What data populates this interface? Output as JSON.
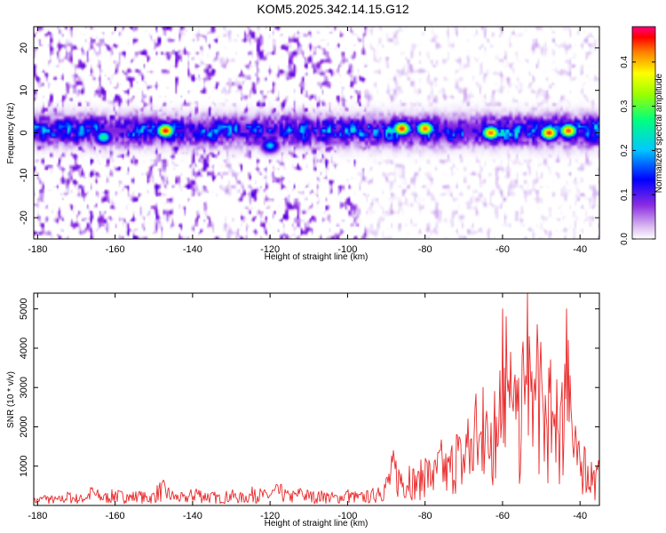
{
  "title": "KOM5.2025.342.14.15.G12",
  "chart_data": [
    {
      "type": "heatmap",
      "name": "spectrogram",
      "xlabel": "Height of straight line (km)",
      "ylabel": "Frequency (Hz)",
      "xlim": [
        -181,
        -35
      ],
      "ylim": [
        -25,
        25
      ],
      "xticks": [
        -180,
        -160,
        -140,
        -120,
        -100,
        -80,
        -60,
        -40
      ],
      "yticks": [
        -20,
        -10,
        0,
        10,
        20
      ],
      "band_center_hz": 0.5,
      "band_halfwidth_hz": 4,
      "peaks": [
        {
          "x": -147,
          "y": 0.5,
          "value": 0.45
        },
        {
          "x": -86,
          "y": 1,
          "value": 0.44
        },
        {
          "x": -80,
          "y": 1,
          "value": 0.42
        },
        {
          "x": -63,
          "y": 0,
          "value": 0.42
        },
        {
          "x": -48,
          "y": 0,
          "value": 0.44
        },
        {
          "x": -43,
          "y": 0.5,
          "value": 0.43
        },
        {
          "x": -163,
          "y": -1,
          "value": 0.25
        },
        {
          "x": -120,
          "y": -3,
          "value": 0.2
        }
      ],
      "colorbar": {
        "label": "Normalized spectral amplitude",
        "ticks": [
          0.0,
          0.1,
          0.2,
          0.3,
          0.4
        ],
        "tick_labels": [
          "0.0",
          "0.1",
          "0.2",
          "0.3",
          "0.4"
        ],
        "range": [
          0,
          0.48
        ],
        "colors": [
          "#ffffff",
          "#d9b8f0",
          "#8a2be2",
          "#0000ff",
          "#00c8ff",
          "#00ff7f",
          "#9aff00",
          "#ffff00",
          "#ff8000",
          "#ff0000",
          "#ff0080"
        ]
      }
    },
    {
      "type": "line",
      "name": "snr",
      "xlabel": "Height of straight line (km)",
      "ylabel": "SNR (10 * v/v)",
      "xlim": [
        -181,
        -35
      ],
      "ylim": [
        0,
        5400
      ],
      "xticks": [
        -180,
        -160,
        -140,
        -120,
        -100,
        -80,
        -60,
        -40
      ],
      "yticks": [
        1000,
        2000,
        3000,
        4000,
        5000
      ],
      "series": [
        {
          "name": "SNR",
          "color": "#e8292a",
          "x": [
            -181,
            -178,
            -175,
            -172,
            -169,
            -166,
            -163,
            -160,
            -157,
            -154,
            -151,
            -148,
            -145,
            -142,
            -139,
            -136,
            -133,
            -130,
            -127,
            -124,
            -121,
            -118,
            -115,
            -112,
            -109,
            -106,
            -103,
            -100,
            -97,
            -94,
            -92,
            -90,
            -88,
            -86,
            -84,
            -82,
            -80,
            -78,
            -76,
            -74,
            -72,
            -70,
            -69,
            -68,
            -67,
            -66,
            -65,
            -64,
            -63,
            -62,
            -61,
            -60,
            -59.5,
            -59,
            -58.5,
            -58,
            -57.5,
            -57,
            -56,
            -55,
            -54,
            -53.5,
            -53,
            -52.5,
            -52,
            -51,
            -50,
            -49,
            -48,
            -47,
            -46,
            -45,
            -44,
            -43.5,
            -43,
            -42.5,
            -42,
            -41,
            -40,
            -39,
            -38,
            -37,
            -36,
            -35
          ],
          "values": [
            150,
            250,
            180,
            300,
            220,
            420,
            260,
            350,
            280,
            320,
            240,
            560,
            300,
            250,
            420,
            300,
            270,
            330,
            260,
            410,
            320,
            500,
            280,
            400,
            300,
            320,
            260,
            350,
            280,
            330,
            450,
            700,
            1200,
            800,
            1000,
            700,
            1200,
            900,
            1400,
            1100,
            1800,
            1300,
            2200,
            1700,
            2500,
            1800,
            3000,
            2400,
            2100,
            2900,
            2300,
            5000,
            3500,
            4800,
            2900,
            3900,
            2600,
            3100,
            2400,
            3800,
            3300,
            5400,
            4300,
            3400,
            2900,
            4600,
            3200,
            2800,
            3500,
            2300,
            3200,
            2500,
            3600,
            5000,
            4200,
            3300,
            2100,
            1700,
            1200,
            1500,
            1000,
            1100,
            800,
            1000
          ]
        }
      ]
    }
  ]
}
